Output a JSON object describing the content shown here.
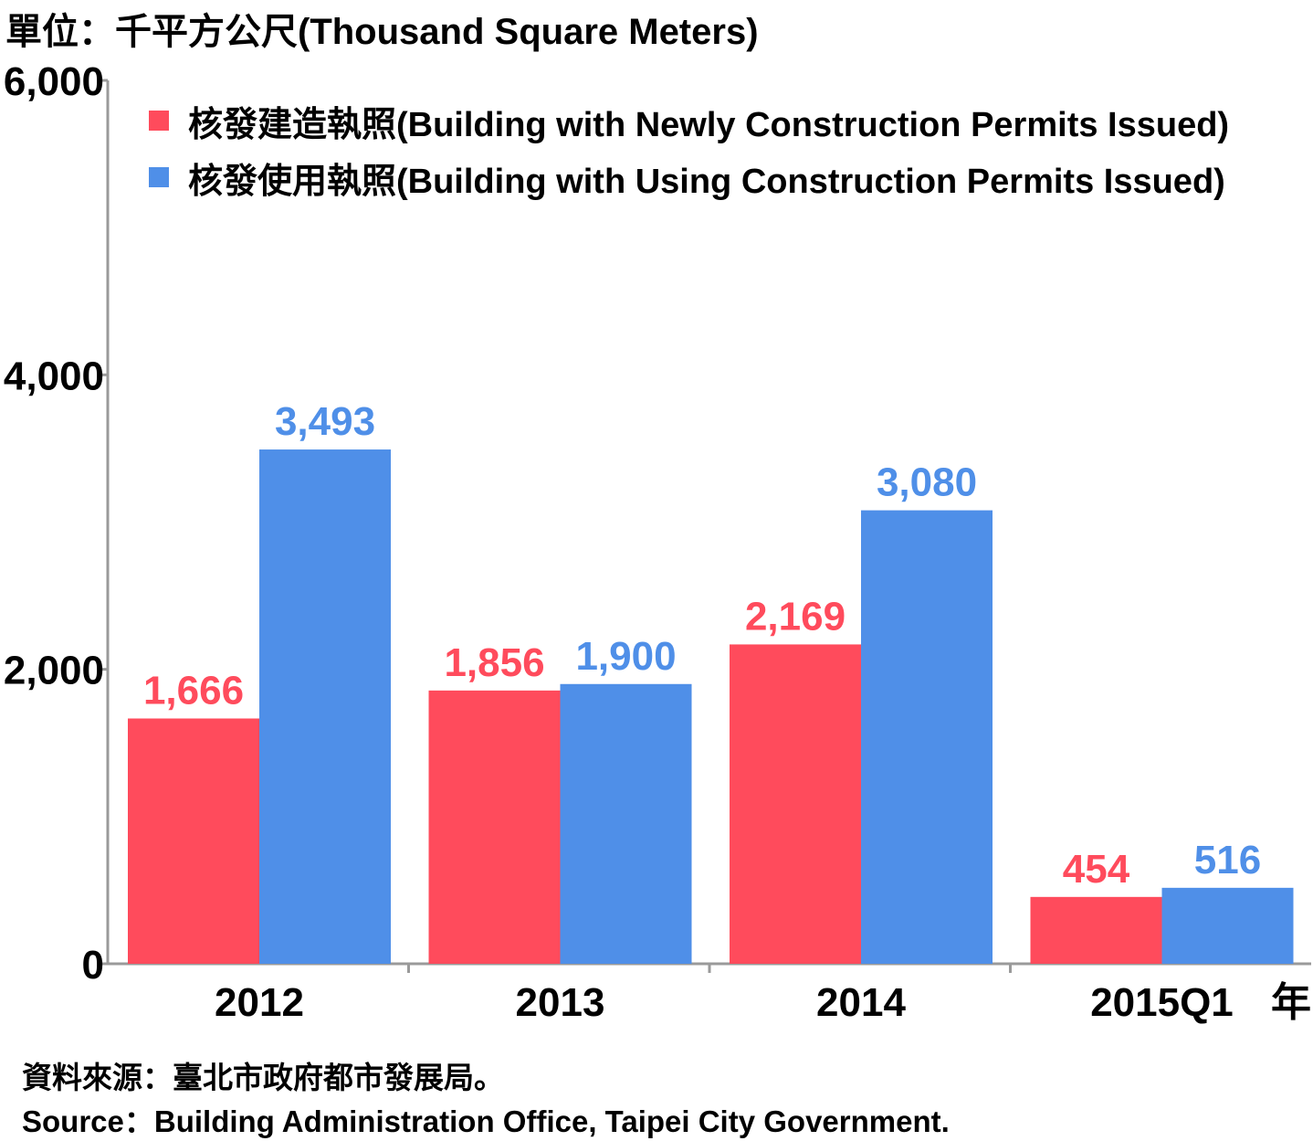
{
  "unit_label": "單位：千平方公尺(Thousand Square Meters)",
  "source_zh": "資料來源：臺北市政府都市發展局。",
  "source_en": "Source：Building Administration Office, Taipei City Government.",
  "colors": {
    "new_permits": "#ff4b5c",
    "using_permits": "#4f8fe8",
    "axis": "#9a9a9a"
  },
  "chart_data": {
    "type": "bar",
    "title": "",
    "ylabel": "單位：千平方公尺(Thousand Square Meters)",
    "xlabel": "年",
    "categories": [
      "2012",
      "2013",
      "2014",
      "2015Q1"
    ],
    "ylim": [
      0,
      6000
    ],
    "yticks": [
      "0",
      "2,000",
      "4,000",
      "6,000"
    ],
    "ytick_values": [
      0,
      2000,
      4000,
      6000
    ],
    "legend_position": "top",
    "grid": false,
    "series": [
      {
        "name": "核發建造執照(Building with Newly Construction Permits Issued)",
        "values": [
          1666,
          1856,
          2169,
          454
        ],
        "labels": [
          "1,666",
          "1,856",
          "2,169",
          "454"
        ]
      },
      {
        "name": "核發使用執照(Building with Using Construction Permits Issued)",
        "values": [
          3493,
          1900,
          3080,
          516
        ],
        "labels": [
          "3,493",
          "1,900",
          "3,080",
          "516"
        ]
      }
    ]
  }
}
